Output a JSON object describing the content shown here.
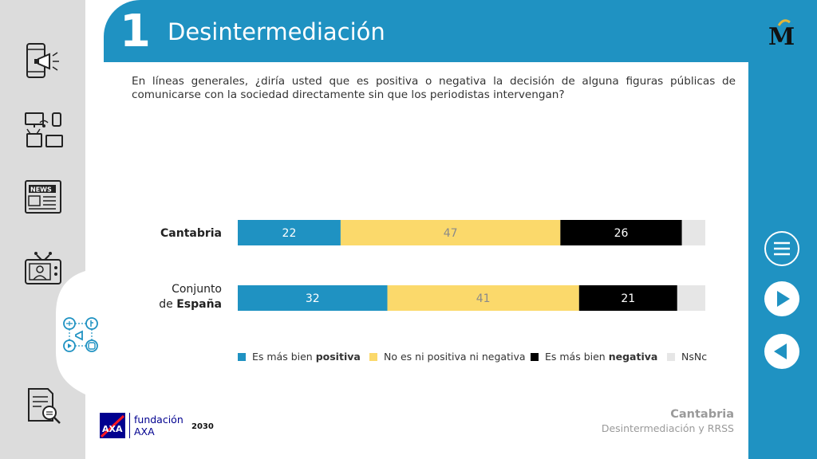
{
  "header": {
    "number": "1",
    "title": "Desintermediación"
  },
  "question": "En líneas generales, ¿diría usted que es positiva o negativa la decisión de alguna figuras públicas de comunicarse con la sociedad directamente sin que los periodistas intervengan?",
  "colors": {
    "positiva": "#1f92c2",
    "neutral": "#fbd96b",
    "negativa": "#000000",
    "nsnc": "#e6e6e6",
    "brand_blue": "#1f92c2"
  },
  "chart_data": {
    "type": "bar",
    "orientation": "horizontal",
    "stacked": true,
    "categories": [
      {
        "pre": "",
        "bold": "Cantabria"
      },
      {
        "pre": "Conjunto de ",
        "bold": "España"
      }
    ],
    "category_lines": [
      [
        "",
        "Cantabria"
      ],
      [
        "Conjunto",
        "de ",
        "España"
      ]
    ],
    "series": [
      {
        "name": "Es más bien positiva",
        "values": [
          22,
          32
        ],
        "color": "#1f92c2",
        "label_color": "#ffffff"
      },
      {
        "name": "No es ni positiva ni negativa",
        "values": [
          47,
          41
        ],
        "color": "#fbd96b",
        "label_color": "#8a8a8a"
      },
      {
        "name": "Es más bien negativa",
        "values": [
          26,
          21
        ],
        "color": "#000000",
        "label_color": "#ffffff"
      },
      {
        "name": "NsNc",
        "values": [
          5,
          6
        ],
        "color": "#e6e6e6",
        "label_color": "#333333"
      }
    ],
    "data_labels": [
      [
        "22",
        "47",
        "26",
        ""
      ],
      [
        "32",
        "41",
        "21",
        ""
      ]
    ],
    "xlim": [
      0,
      100
    ],
    "grid": false,
    "legend_position": "bottom"
  },
  "legend": [
    {
      "pre": "Es más bien ",
      "bold": "positiva",
      "icon": "legend-swatch-positiva"
    },
    {
      "pre": "No es ni positiva ni negativa",
      "bold": "",
      "icon": "legend-swatch-neutral"
    },
    {
      "pre": "Es más bien ",
      "bold": "negativa",
      "icon": "legend-swatch-negativa"
    },
    {
      "pre": "NsNc",
      "bold": "",
      "icon": "legend-swatch-nsnc"
    }
  ],
  "footer": {
    "title": "Cantabria",
    "subtitle": "Desintermediación y RRSS",
    "fund_line1": "fundación",
    "fund_line2": "AXA",
    "year_logo": "2030",
    "axa_logo": "AXA"
  },
  "sidebar": {
    "items": [
      {
        "name": "mobile-megaphone-icon"
      },
      {
        "name": "devices-icon"
      },
      {
        "name": "newspaper-icon",
        "text": "NEWS"
      },
      {
        "name": "tv-presenter-icon"
      },
      {
        "name": "social-media-icon",
        "active": true
      },
      {
        "name": "report-search-icon"
      }
    ]
  },
  "right_nav": {
    "menu": "menu-icon",
    "next": "play-icon",
    "prev": "back-icon"
  }
}
